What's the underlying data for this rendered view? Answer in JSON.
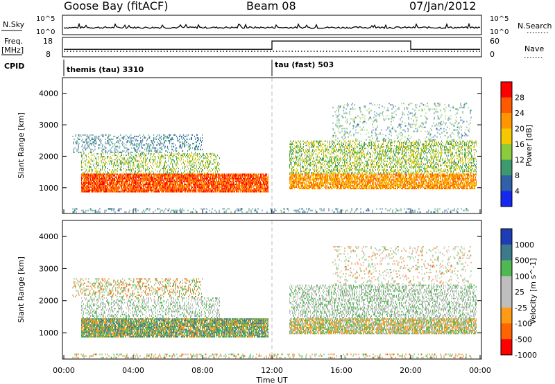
{
  "header": {
    "site": "Goose Bay (fitACF)",
    "beam": "Beam 08",
    "date": "07/Jan/2012"
  },
  "status_panel": {
    "nsky_label": "N.Sky",
    "nsearch_label": "N.Search",
    "noise_ticks": [
      "10^5",
      "10^0"
    ],
    "freq_label_1": "Freq.",
    "freq_label_2": "[MHz]",
    "freq_ticks": [
      "18",
      "8"
    ],
    "nave_label": "Nave",
    "nave_ticks": [
      "60",
      "0"
    ],
    "cpid_label": "CPID",
    "cpid_segments": [
      {
        "label": "themis (tau) 3310",
        "start_hour": 0,
        "end_hour": 12
      },
      {
        "label": "tau (fast) 503",
        "start_hour": 12,
        "end_hour": 24
      }
    ],
    "nave_steps": [
      {
        "start_hour": 0,
        "end_hour": 12,
        "value": 22
      },
      {
        "start_hour": 12,
        "end_hour": 20,
        "value": 52
      },
      {
        "start_hour": 20,
        "end_hour": 24,
        "value": 22
      }
    ]
  },
  "x_axis": {
    "label": "Time UT",
    "ticks": [
      "00:00",
      "04:00",
      "08:00",
      "12:00",
      "16:00",
      "20:00",
      "00:00"
    ],
    "range_hours": [
      0,
      24
    ]
  },
  "chart_data": [
    {
      "type": "heatmap",
      "parameter": "power",
      "ylabel": "Slant Range [km]",
      "y_ticks": [
        1000,
        2000,
        3000,
        4000
      ],
      "ylim": [
        180,
        4500
      ],
      "xlim_hours": [
        0,
        24
      ],
      "colorbar_label": "Power [dB]",
      "colorbar_ticks": [
        "28",
        "24",
        "20",
        "16",
        "12",
        "8",
        "4"
      ],
      "colorbar_colors": [
        "#ff0000",
        "#ff5a00",
        "#ff9600",
        "#f5c800",
        "#8ccc3c",
        "#3c9a6e",
        "#3060a8",
        "#1428f0"
      ]
    },
    {
      "type": "heatmap",
      "parameter": "velocity",
      "ylabel": "Slant Range [km]",
      "y_ticks": [
        1000,
        2000,
        3000,
        4000
      ],
      "ylim": [
        180,
        4500
      ],
      "xlim_hours": [
        0,
        24
      ],
      "colorbar_label": "Velocity [m s^-1]",
      "colorbar_ticks": [
        "1000",
        "500",
        "100",
        "25",
        "-25",
        "-100",
        "-500",
        "-1000"
      ],
      "colorbar_colors": [
        "#1e3cb4",
        "#3c7a8c",
        "#50b850",
        "#bebebe",
        "#bebebe",
        "#ff9a14",
        "#ff6400",
        "#ff0000"
      ]
    }
  ]
}
